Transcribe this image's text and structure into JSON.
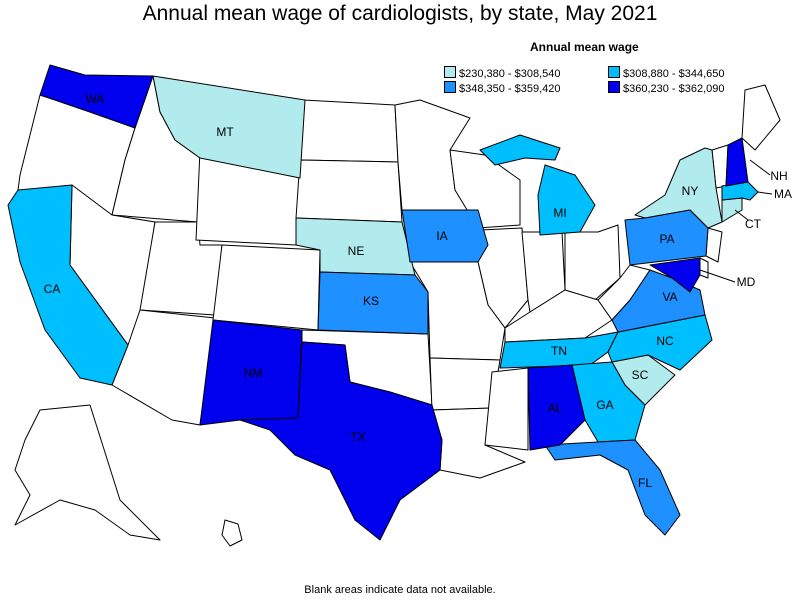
{
  "title": "Annual mean wage of cardiologists, by state, May 2021",
  "legend": {
    "title": "Annual mean wage",
    "items": [
      {
        "label": "$230,380 - $308,540",
        "color": "#b2ebee"
      },
      {
        "label": "$348,350 - $359,420",
        "color": "#1e90ff"
      },
      {
        "label": "$308,880 - $344,650",
        "color": "#00bfff"
      },
      {
        "label": "$360,230 - $362,090",
        "color": "#0000ee"
      }
    ]
  },
  "colors": {
    "blank": "#ffffff",
    "tier1": "#b2ebee",
    "tier2": "#00bfff",
    "tier3": "#1e90ff",
    "tier4": "#0000ee"
  },
  "state_labels": {
    "WA": "WA",
    "MT": "MT",
    "CA": "CA",
    "NE": "NE",
    "IA": "IA",
    "KS": "KS",
    "NM": "NM",
    "TX": "TX",
    "MI": "MI",
    "NY": "NY",
    "NH": "NH",
    "MA": "MA",
    "CT": "CT",
    "PA": "PA",
    "MD": "MD",
    "VA": "VA",
    "NC": "NC",
    "TN": "TN",
    "SC": "SC",
    "GA": "GA",
    "AL": "AL",
    "FL": "FL"
  },
  "note": "Blank areas indicate data not available."
}
